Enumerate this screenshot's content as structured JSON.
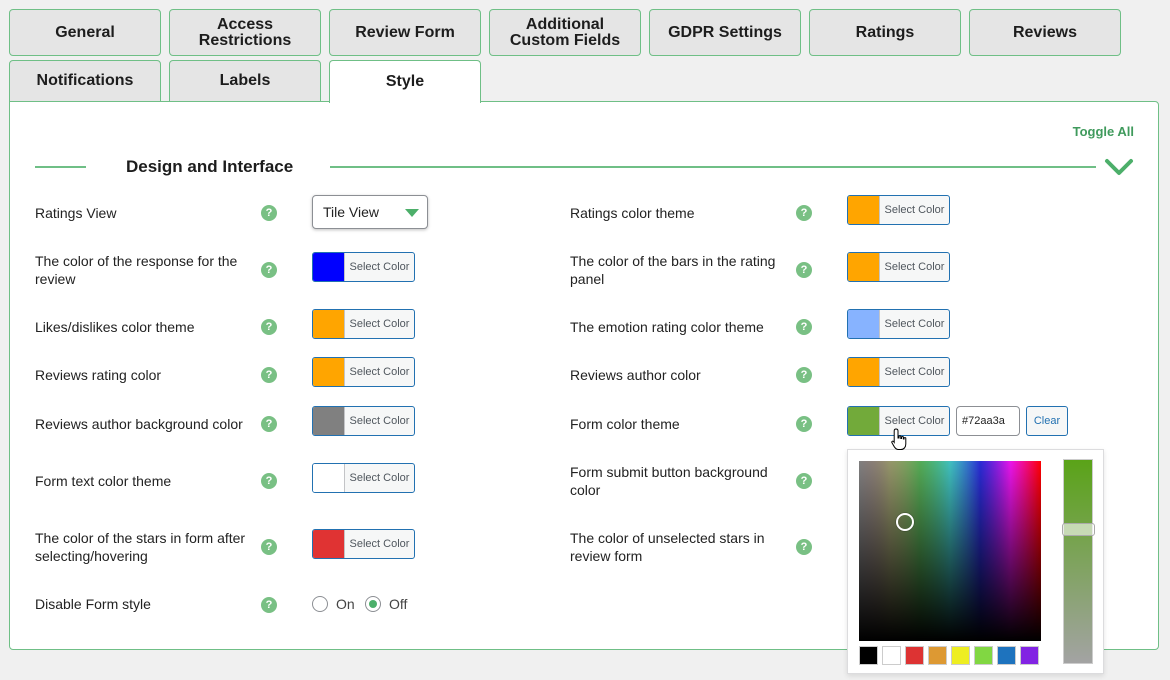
{
  "tabs": [
    {
      "label": "General"
    },
    {
      "label": "Access Restrictions"
    },
    {
      "label": "Review Form"
    },
    {
      "label": "Additional Custom Fields"
    },
    {
      "label": "GDPR Settings"
    },
    {
      "label": "Ratings"
    },
    {
      "label": "Reviews"
    },
    {
      "label": "Notifications"
    },
    {
      "label": "Labels"
    },
    {
      "label": "Style"
    }
  ],
  "active_tab": "Style",
  "toggle_all": "Toggle All",
  "section_title": "Design and Interface",
  "help_glyph": "?",
  "select_color_label": "Select Color",
  "left_rows": [
    {
      "label": "Ratings View",
      "type": "select",
      "value": "Tile View"
    },
    {
      "label": "The color of the response for the review",
      "type": "color",
      "color": "#0000ff"
    },
    {
      "label": "Likes/dislikes color theme",
      "type": "color",
      "color": "#ffa500"
    },
    {
      "label": "Reviews rating color",
      "type": "color",
      "color": "#ffa500"
    },
    {
      "label": "Reviews author background color",
      "type": "color",
      "color": "#808080"
    },
    {
      "label": "Form text color theme",
      "type": "color",
      "color": "#ffffff"
    },
    {
      "label": "The color of the stars in form after selecting/hovering",
      "type": "color",
      "color": "#e03333"
    },
    {
      "label": "Disable Form style",
      "type": "radio"
    }
  ],
  "right_rows": [
    {
      "label": "Ratings color theme",
      "color": "#ffa500"
    },
    {
      "label": "The color of the bars in the rating panel",
      "color": "#ffa500"
    },
    {
      "label": "The emotion rating color theme",
      "color": "#87b3ff"
    },
    {
      "label": "Reviews author color",
      "color": "#ffa500"
    },
    {
      "label": "Form color theme",
      "color": "#72aa3a"
    },
    {
      "label": "Form submit button background color"
    },
    {
      "label": "The color of unselected stars in review form"
    }
  ],
  "form_color_hex": "#72aa3a",
  "clear_label": "Clear",
  "radio": {
    "on_label": "On",
    "off_label": "Off",
    "selected": "Off"
  },
  "palette": [
    "#000000",
    "#ffffff",
    "#dd3333",
    "#dd9933",
    "#eeee22",
    "#81d742",
    "#1e73be",
    "#8224e3"
  ],
  "icons": {
    "chevron": "chevron-down-icon",
    "cursor": "hand-pointer-icon"
  }
}
